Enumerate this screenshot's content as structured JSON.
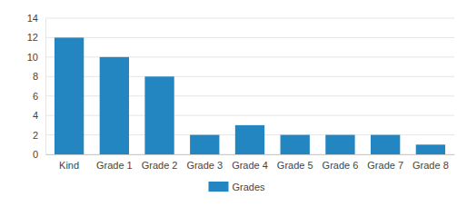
{
  "chart_data": {
    "type": "bar",
    "categories": [
      "Kind",
      "Grade 1",
      "Grade 2",
      "Grade 3",
      "Grade 4",
      "Grade 5",
      "Grade 6",
      "Grade 7",
      "Grade 8"
    ],
    "series": [
      {
        "name": "Grades",
        "color": "#2386c0",
        "values": [
          12,
          10,
          8,
          2,
          3,
          2,
          2,
          2,
          1
        ]
      }
    ],
    "ylim": [
      0,
      14
    ],
    "yticks": [
      0,
      2,
      4,
      6,
      8,
      10,
      12,
      14
    ],
    "grid": true,
    "legend": "bottom"
  }
}
